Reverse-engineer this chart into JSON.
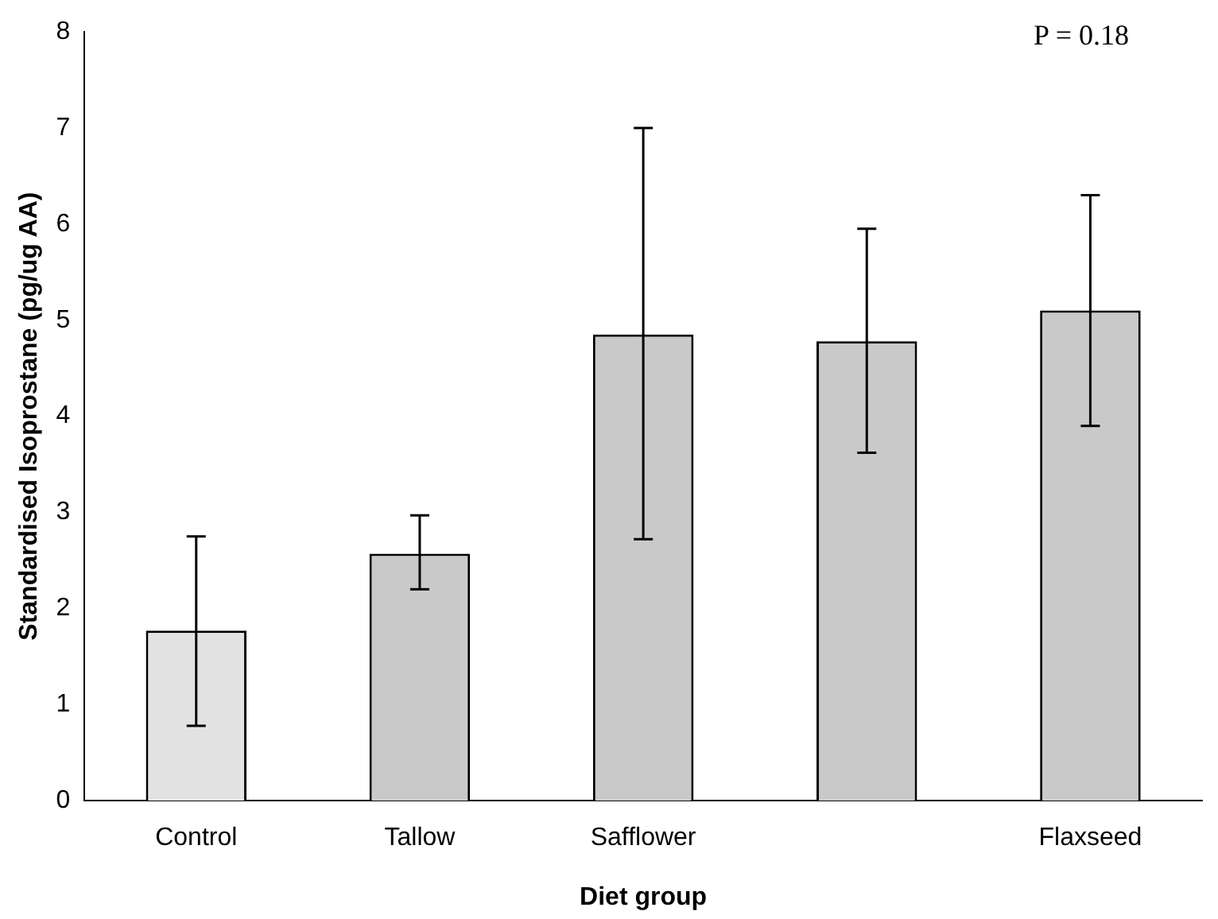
{
  "chart_data": {
    "type": "bar",
    "xlabel": "Diet group",
    "ylabel": "Standardised Isoprostane (pg/ug AA)",
    "categories": [
      "Control",
      "Tallow",
      "Safflower",
      null,
      "Flaxseed"
    ],
    "values": [
      1.77,
      2.57,
      4.85,
      4.78,
      5.1
    ],
    "colors": [
      "#e2e2e2",
      "#c9c9c9",
      "#c9c9c9",
      "#c9c9c9",
      "#c9c9c9"
    ],
    "errors": [
      [
        0.78,
        2.75
      ],
      [
        2.2,
        2.97
      ],
      [
        2.72,
        7.0
      ],
      [
        3.62,
        5.95
      ],
      [
        3.9,
        6.3
      ]
    ],
    "ylim": [
      0,
      8
    ],
    "yticks": [
      0,
      1,
      2,
      3,
      4,
      5,
      6,
      7,
      8
    ],
    "grid": false,
    "legend": false,
    "annotations": [
      "P = 0.18"
    ]
  }
}
